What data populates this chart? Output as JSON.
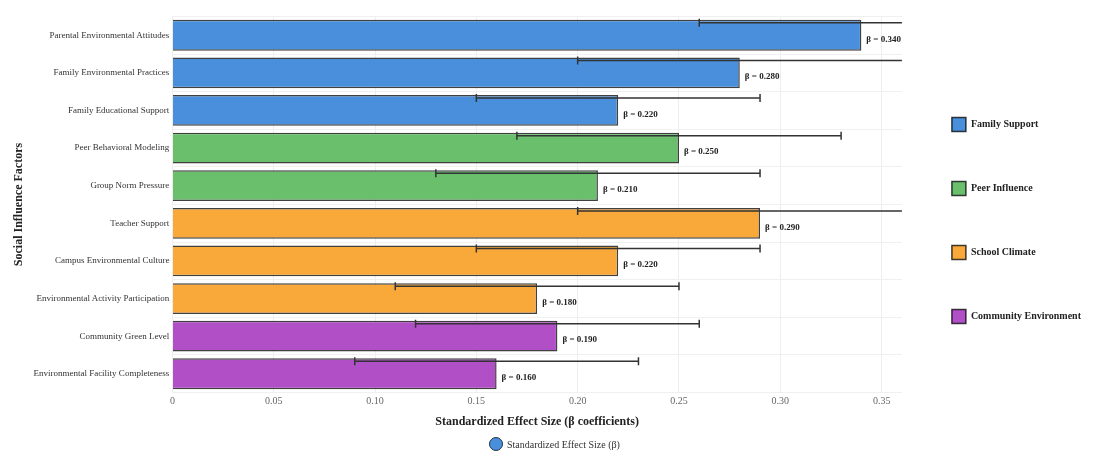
{
  "chart_data": {
    "type": "bar",
    "orientation": "horizontal",
    "stacked": true,
    "ylabel": "Social Influence Factors",
    "xlabel": "Standardized Effect Size (β coefficients)",
    "legend_title": "Standardized Effect Size (β)",
    "categories": [
      "Parental Environmental Attitudes",
      "Family Environmental Practices",
      "Family Educational Support",
      "Peer Behavioral Modeling",
      "Group Norm Pressure",
      "Teacher Support",
      "Campus Environmental Culture",
      "Environmental Activity Participation",
      "Community Green Level",
      "Environmental Facility Completeness"
    ],
    "series": [
      {
        "name": "Family Support",
        "color": "#4a8fdb",
        "values": [
          0.34,
          0.28,
          0.22,
          null,
          null,
          null,
          null,
          null,
          null,
          null
        ],
        "errors": [
          [
            0.26,
            0.36
          ],
          [
            0.2,
            0.36
          ],
          [
            0.15,
            0.29
          ],
          null,
          null,
          null,
          null,
          null,
          null,
          null
        ],
        "value_labels": [
          "β = 0.340",
          "β = 0.280",
          "β = 0.220",
          null,
          null,
          null,
          null,
          null,
          null,
          null
        ]
      },
      {
        "name": "Peer Influence",
        "color": "#6abf6c",
        "values": [
          null,
          null,
          null,
          0.25,
          0.21,
          null,
          null,
          null,
          null,
          null
        ],
        "errors": [
          null,
          null,
          null,
          [
            0.17,
            0.33
          ],
          [
            0.13,
            0.29
          ],
          null,
          null,
          null,
          null,
          null
        ],
        "value_labels": [
          null,
          null,
          null,
          "β = 0.250",
          "β = 0.210",
          null,
          null,
          null,
          null,
          null
        ]
      },
      {
        "name": "School Climate",
        "color": "#f9a83a",
        "values": [
          null,
          null,
          null,
          null,
          null,
          0.29,
          0.22,
          0.18,
          null,
          null
        ],
        "errors": [
          null,
          null,
          null,
          null,
          null,
          [
            0.2,
            0.36
          ],
          [
            0.15,
            0.29
          ],
          [
            0.11,
            0.25
          ],
          null,
          null
        ],
        "value_labels": [
          null,
          null,
          null,
          null,
          null,
          "β = 0.290",
          "β = 0.220",
          "β = 0.180",
          null,
          null
        ]
      },
      {
        "name": "Community Environment",
        "color": "#b04fc6",
        "values": [
          null,
          null,
          null,
          null,
          null,
          null,
          null,
          null,
          0.19,
          0.16
        ],
        "errors": [
          null,
          null,
          null,
          null,
          null,
          null,
          null,
          null,
          [
            0.12,
            0.26
          ],
          [
            0.09,
            0.23
          ]
        ],
        "value_labels": [
          null,
          null,
          null,
          null,
          null,
          null,
          null,
          null,
          "β = 0.190",
          "β = 0.160"
        ]
      }
    ],
    "xlim": [
      0,
      0.36
    ],
    "xticks": [
      0,
      0.05,
      {
        "value": 0.1,
        "label": "0.10"
      },
      0.15,
      {
        "value": 0.2,
        "label": "0.20"
      },
      0.25,
      {
        "value": 0.3,
        "label": "0.30"
      },
      0.35
    ],
    "grid": true,
    "legend": "right"
  }
}
